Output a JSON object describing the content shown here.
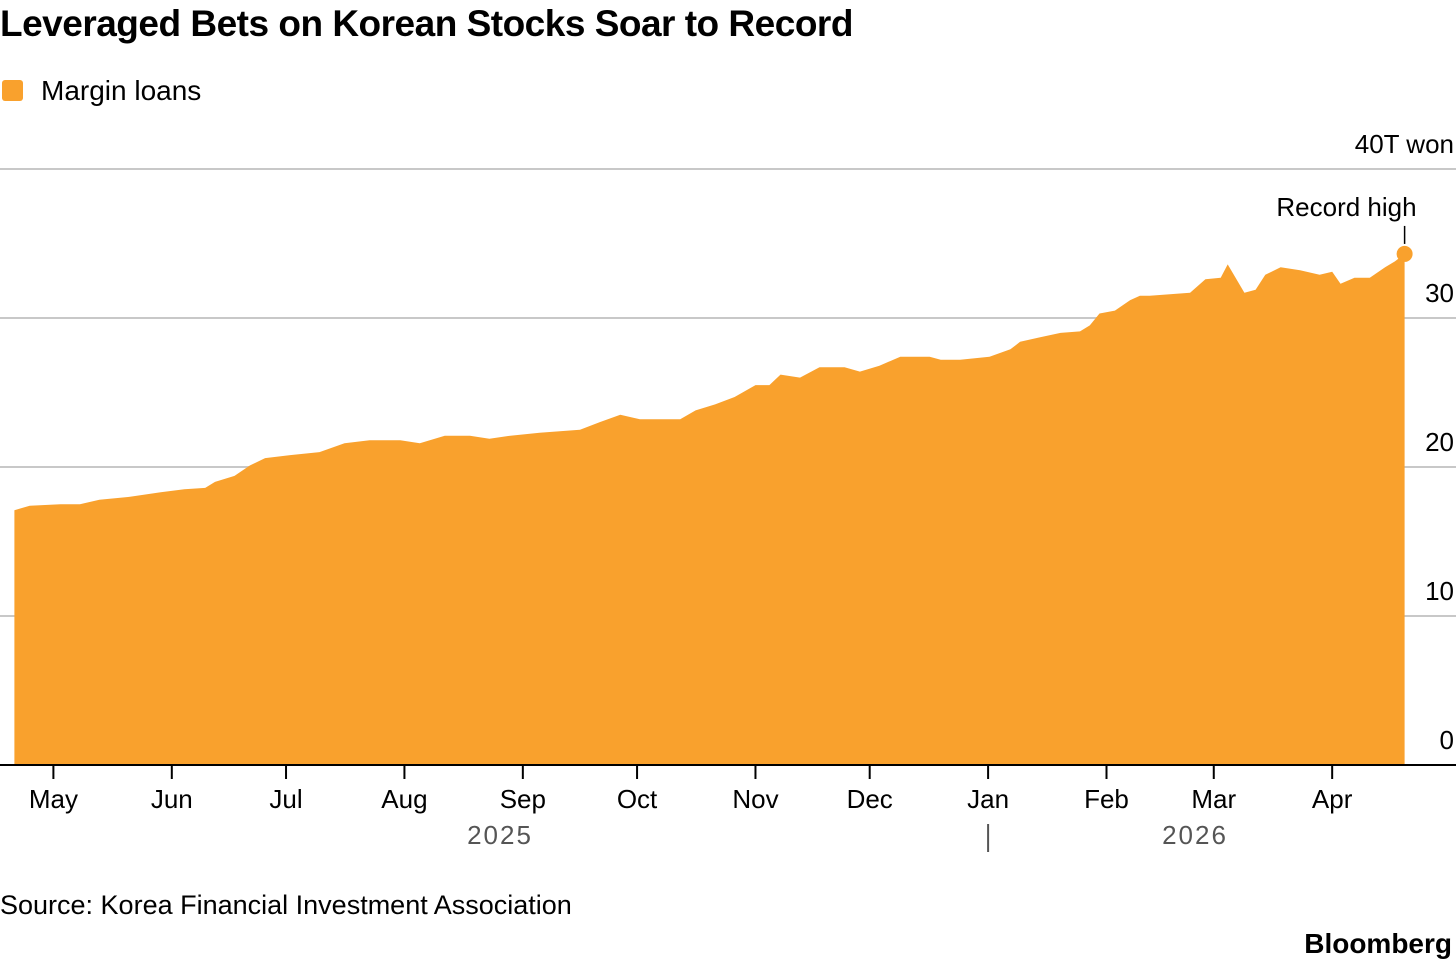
{
  "chart_data": {
    "type": "area",
    "title": "Leveraged Bets on Korean Stocks Soar to Record",
    "source": "Source: Korea Financial Investment Association",
    "brand": "Bloomberg",
    "annotation": "Record high",
    "year_labels": [
      "2025",
      "2026"
    ],
    "x": [
      2025.301,
      2025.312,
      2025.334,
      2025.348,
      2025.362,
      2025.384,
      2025.406,
      2025.423,
      2025.438,
      2025.445,
      2025.459,
      2025.47,
      2025.481,
      2025.499,
      2025.52,
      2025.538,
      2025.556,
      2025.578,
      2025.592,
      2025.61,
      2025.628,
      2025.642,
      2025.657,
      2025.678,
      2025.707,
      2025.721,
      2025.736,
      2025.75,
      2025.779,
      2025.79,
      2025.804,
      2025.818,
      2025.833,
      2025.843,
      2025.851,
      2025.865,
      2025.879,
      2025.897,
      2025.908,
      2025.922,
      2025.937,
      2025.958,
      2025.966,
      2025.98,
      2026.001,
      2026.016,
      2026.023,
      2026.037,
      2026.052,
      2026.066,
      2026.073,
      2026.08,
      2026.091,
      2026.102,
      2026.109,
      2026.116,
      2026.145,
      2026.156,
      2026.167,
      2026.172,
      2026.184,
      2026.192,
      2026.199,
      2026.21,
      2026.224,
      2026.238,
      2026.247,
      2026.253,
      2026.263,
      2026.274,
      2026.285,
      2026.292,
      2026.299
    ],
    "series": [
      {
        "name": "Margin loans",
        "color": "#f9a12d",
        "values": [
          17.1,
          17.4,
          17.5,
          17.5,
          17.8,
          18.0,
          18.3,
          18.5,
          18.6,
          19.0,
          19.4,
          20.1,
          20.6,
          20.8,
          21.0,
          21.6,
          21.8,
          21.8,
          21.6,
          22.1,
          22.1,
          21.9,
          22.1,
          22.3,
          22.5,
          23.0,
          23.5,
          23.2,
          23.2,
          23.8,
          24.2,
          24.7,
          25.5,
          25.5,
          26.2,
          26.0,
          26.7,
          26.7,
          26.4,
          26.8,
          27.4,
          27.4,
          27.2,
          27.2,
          27.4,
          27.9,
          28.4,
          28.7,
          29.0,
          29.1,
          29.5,
          30.3,
          30.5,
          31.2,
          31.5,
          31.5,
          31.7,
          32.6,
          32.7,
          33.6,
          31.7,
          31.9,
          32.9,
          33.4,
          33.2,
          32.9,
          33.1,
          32.3,
          32.7,
          32.7,
          33.4,
          33.8,
          34.3
        ]
      }
    ],
    "xlim": [
      2025.3,
      2026.3
    ],
    "xticks": [
      {
        "value": 2025.329,
        "label": "May"
      },
      {
        "value": 2025.414,
        "label": "Jun"
      },
      {
        "value": 2025.496,
        "label": "Jul"
      },
      {
        "value": 2025.581,
        "label": "Aug"
      },
      {
        "value": 2025.666,
        "label": "Sep"
      },
      {
        "value": 2025.748,
        "label": "Oct"
      },
      {
        "value": 2025.833,
        "label": "Nov"
      },
      {
        "value": 2025.915,
        "label": "Dec"
      },
      {
        "value": 2026.0,
        "label": "Jan"
      },
      {
        "value": 2026.085,
        "label": "Feb"
      },
      {
        "value": 2026.162,
        "label": "Mar"
      },
      {
        "value": 2026.247,
        "label": "Apr"
      }
    ],
    "ylim": [
      0,
      40
    ],
    "yticks": [
      0,
      10,
      20,
      30,
      {
        "value": 40,
        "label": "40T won"
      }
    ],
    "grid": true
  }
}
